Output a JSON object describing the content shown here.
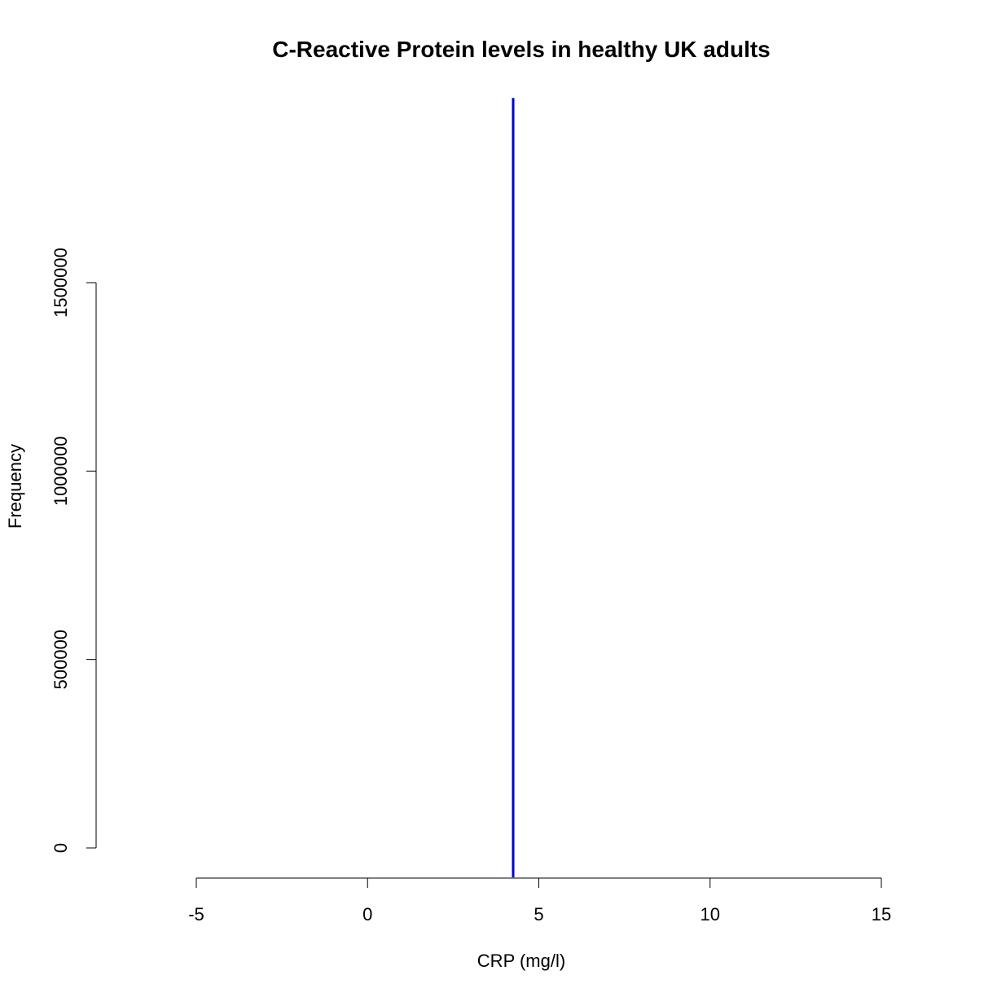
{
  "chart_data": {
    "type": "line",
    "title": "C-Reactive Protein levels in healthy UK adults",
    "xlabel": "CRP (mg/l)",
    "ylabel": "Frequency",
    "xlim": [
      -5,
      15
    ],
    "ylim": [
      0,
      1500000
    ],
    "x_ticks": [
      -5,
      0,
      5,
      10,
      15
    ],
    "y_ticks": [
      0,
      500000,
      1000000,
      1500000
    ],
    "grid": false,
    "series": [
      {
        "x": [
          4.25,
          4.25
        ],
        "y": [
          -78000,
          1990000
        ],
        "color": "#0000cc"
      }
    ]
  }
}
